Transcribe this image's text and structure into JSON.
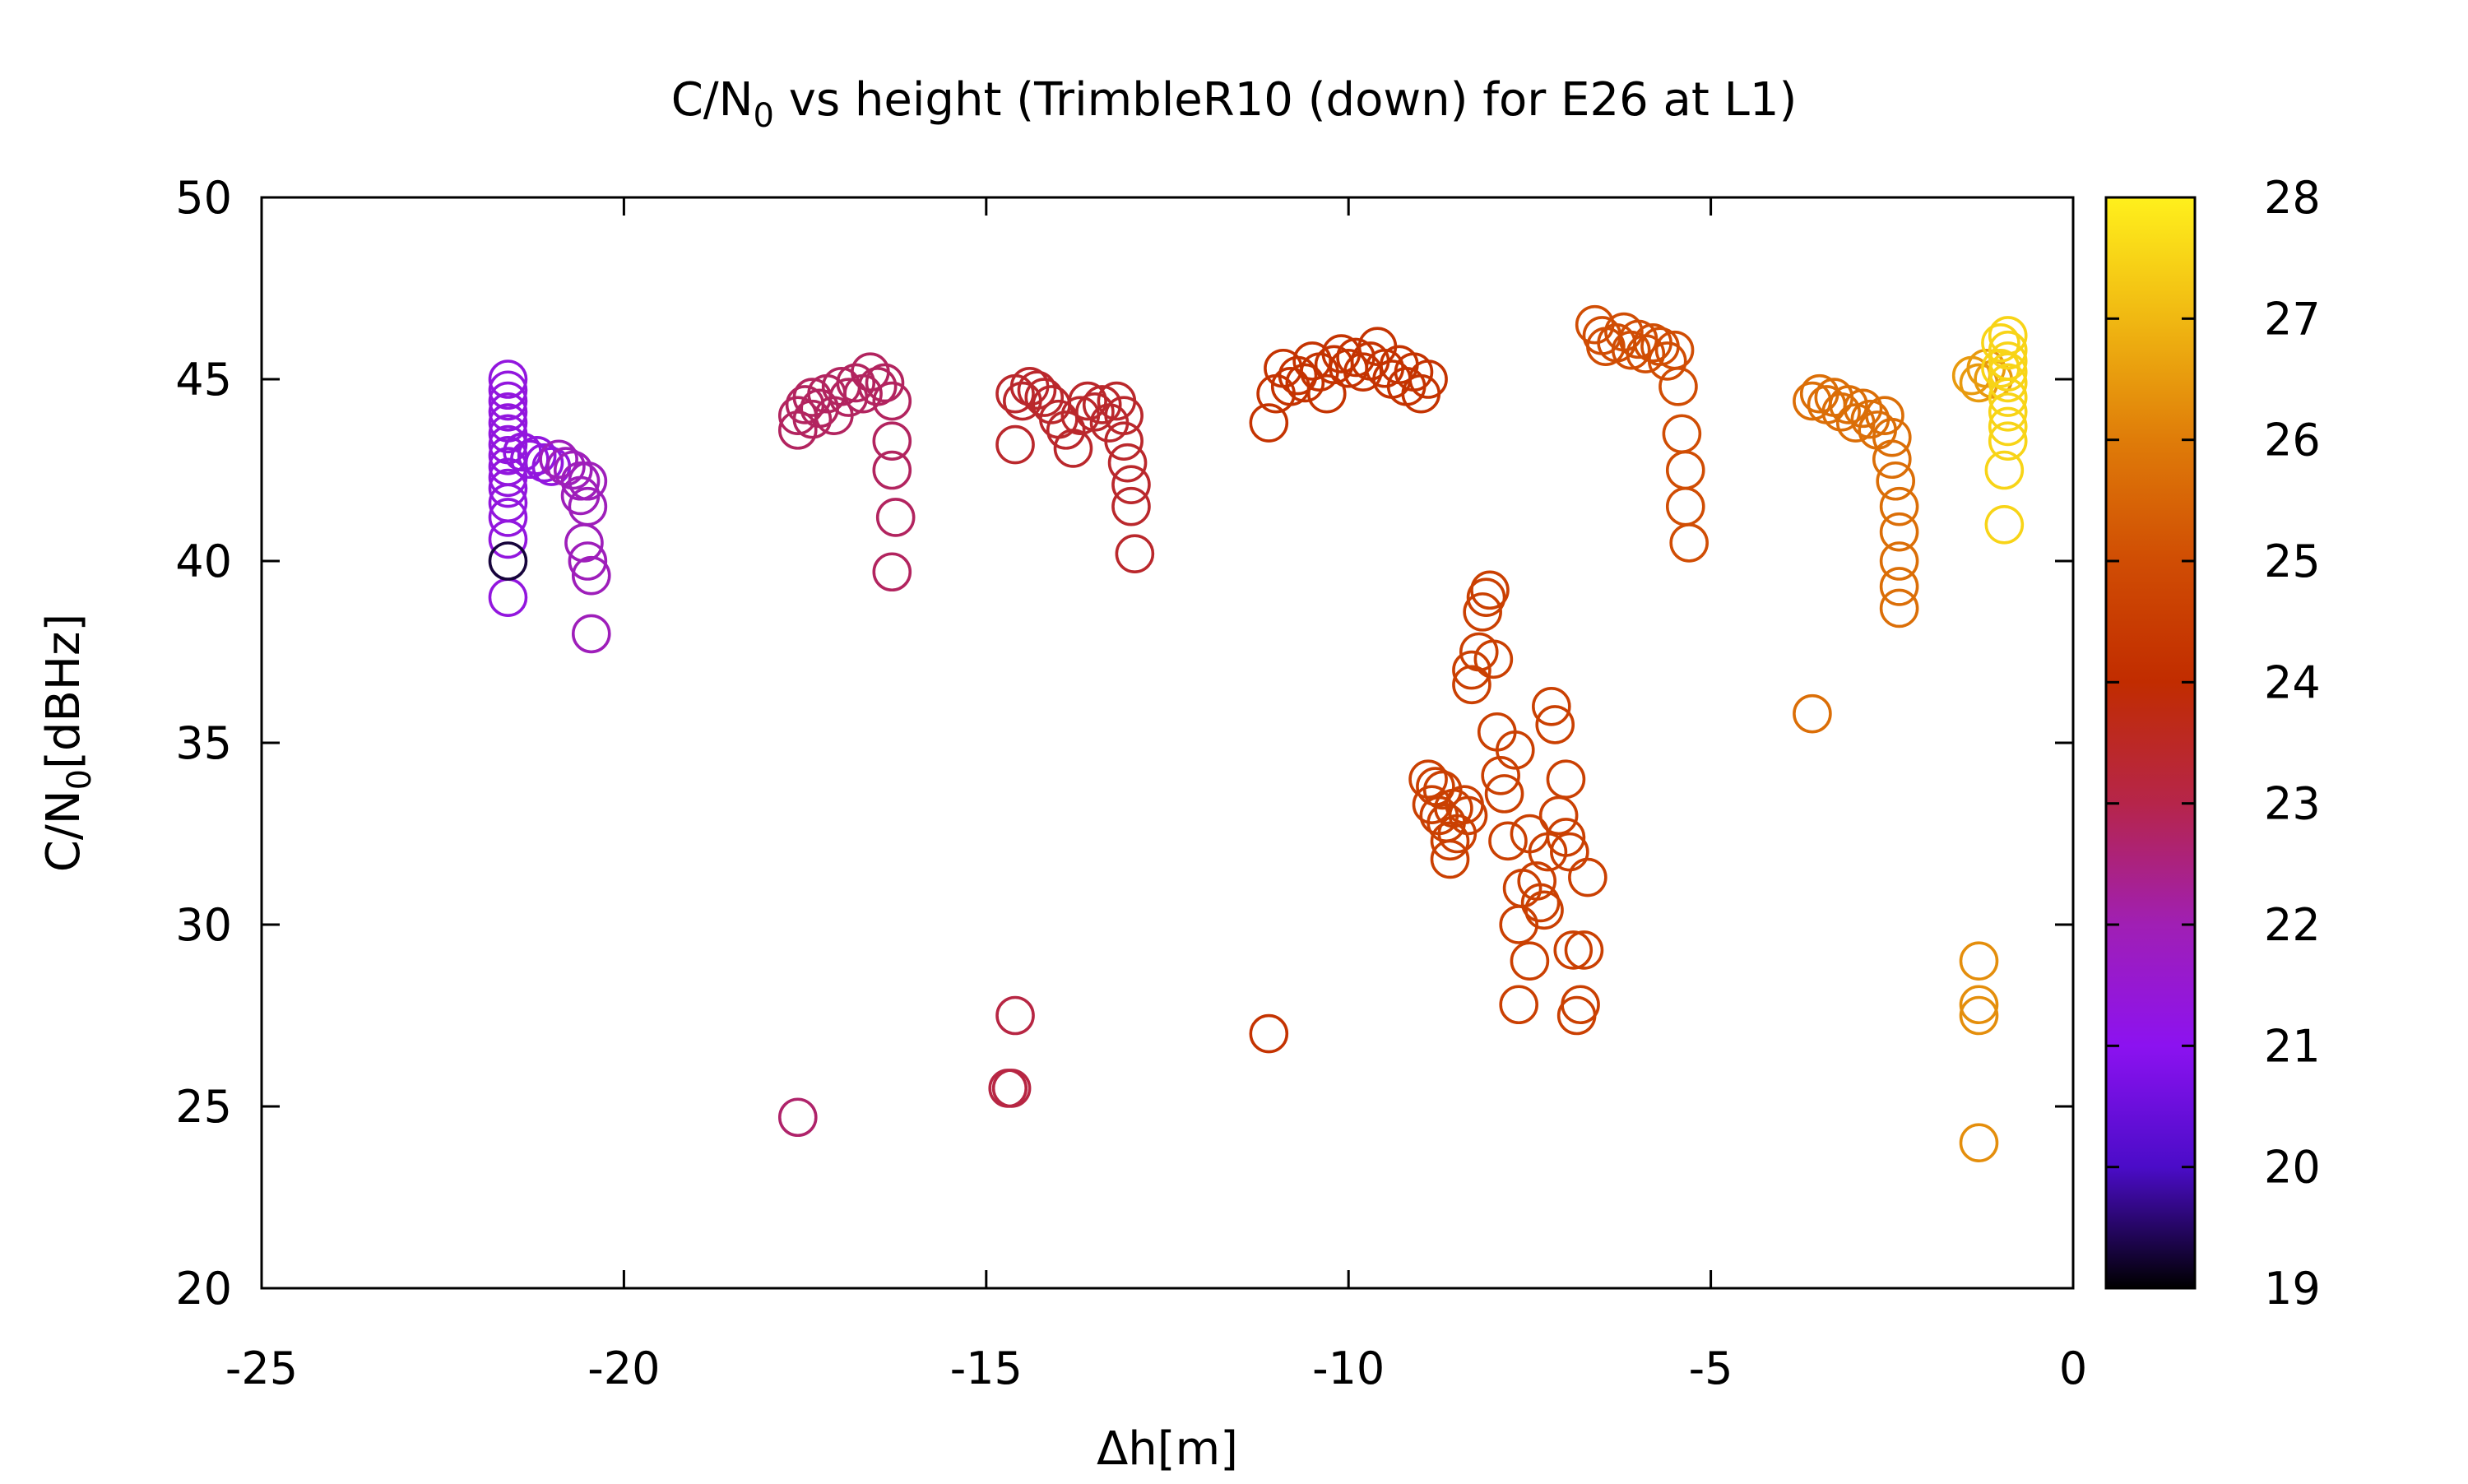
{
  "chart_data": {
    "type": "scatter",
    "title_main": "C/N",
    "title_sub": "0",
    "title_rest": " vs height (TrimbleR10 (down) for E26 at L1)",
    "xlabel": "Δh[m]",
    "ylabel_main": "C/N",
    "ylabel_sub": "0",
    "ylabel_rest": "[dBHz]",
    "xlim": [
      -25,
      0
    ],
    "ylim": [
      20,
      50
    ],
    "xticks": [
      -25,
      -20,
      -15,
      -10,
      -5,
      0
    ],
    "yticks": [
      20,
      25,
      30,
      35,
      40,
      45,
      50
    ],
    "colorbar": {
      "range": [
        19,
        28
      ],
      "ticks": [
        19,
        20,
        21,
        22,
        23,
        24,
        25,
        26,
        27,
        28
      ],
      "palette": [
        "#000000",
        "#4b0cc8",
        "#8c12f0",
        "#a01fb4",
        "#b6254a",
        "#c12c00",
        "#d04d04",
        "#df7c09",
        "#f0b812",
        "#fff01c"
      ]
    },
    "grid": false,
    "marker": "open-circle",
    "clusters": [
      {
        "c": 21.3,
        "points": [
          [
            -21.6,
            45.0
          ],
          [
            -21.6,
            44.7
          ],
          [
            -21.6,
            44.4
          ],
          [
            -21.6,
            44.1
          ],
          [
            -21.6,
            43.8
          ],
          [
            -21.6,
            43.5
          ],
          [
            -21.6,
            43.2
          ],
          [
            -21.6,
            42.9
          ],
          [
            -21.6,
            42.6
          ],
          [
            -21.6,
            42.3
          ],
          [
            -21.6,
            42.0
          ],
          [
            -21.6,
            41.6
          ],
          [
            -21.6,
            41.2
          ],
          [
            -21.6,
            40.6
          ],
          [
            -21.6,
            39.0
          ],
          [
            -21.4,
            43.0
          ],
          [
            -21.3,
            42.8
          ],
          [
            -21.2,
            42.9
          ],
          [
            -21.1,
            42.7
          ],
          [
            -21.0,
            42.6
          ]
        ]
      },
      {
        "c": 19.3,
        "points": [
          [
            -21.6,
            40.0
          ]
        ]
      },
      {
        "c": 21.9,
        "points": [
          [
            -20.9,
            42.8
          ],
          [
            -20.8,
            42.6
          ],
          [
            -20.7,
            42.5
          ],
          [
            -20.6,
            42.2
          ],
          [
            -20.6,
            41.8
          ],
          [
            -20.5,
            42.2
          ],
          [
            -20.5,
            41.5
          ],
          [
            -20.55,
            40.5
          ],
          [
            -20.5,
            40.0
          ],
          [
            -20.45,
            39.6
          ],
          [
            -20.45,
            38.0
          ]
        ]
      },
      {
        "c": 22.7,
        "points": [
          [
            -17.6,
            24.7
          ]
        ]
      },
      {
        "c": 22.8,
        "points": [
          [
            -17.6,
            44.0
          ],
          [
            -17.5,
            44.3
          ],
          [
            -17.4,
            44.5
          ],
          [
            -17.3,
            44.2
          ],
          [
            -17.2,
            44.6
          ],
          [
            -17.1,
            44.0
          ],
          [
            -17.0,
            44.8
          ],
          [
            -16.9,
            44.5
          ],
          [
            -16.8,
            44.9
          ],
          [
            -16.7,
            44.6
          ],
          [
            -16.6,
            45.2
          ],
          [
            -16.5,
            44.8
          ],
          [
            -16.4,
            44.9
          ],
          [
            -16.3,
            44.4
          ],
          [
            -16.3,
            43.3
          ],
          [
            -16.3,
            42.5
          ],
          [
            -16.25,
            41.2
          ],
          [
            -16.3,
            39.7
          ],
          [
            -17.6,
            43.6
          ],
          [
            -17.4,
            43.9
          ]
        ]
      },
      {
        "c": 23.1,
        "points": [
          [
            -14.6,
            27.5
          ],
          [
            -14.65,
            25.5
          ],
          [
            -14.7,
            25.5
          ]
        ]
      },
      {
        "c": 23.4,
        "points": [
          [
            -14.6,
            43.2
          ],
          [
            -14.6,
            44.6
          ],
          [
            -14.5,
            44.4
          ],
          [
            -14.4,
            44.8
          ],
          [
            -14.3,
            44.7
          ],
          [
            -14.2,
            44.5
          ],
          [
            -14.1,
            44.3
          ],
          [
            -14.0,
            43.9
          ],
          [
            -13.9,
            43.6
          ],
          [
            -13.8,
            43.1
          ],
          [
            -13.7,
            44.0
          ],
          [
            -13.6,
            44.4
          ],
          [
            -13.5,
            44.1
          ],
          [
            -13.4,
            44.3
          ],
          [
            -13.3,
            43.8
          ],
          [
            -13.2,
            44.4
          ],
          [
            -13.1,
            44.0
          ],
          [
            -13.1,
            43.3
          ],
          [
            -13.05,
            42.7
          ],
          [
            -13.0,
            42.1
          ],
          [
            -13.0,
            41.5
          ],
          [
            -12.95,
            40.2
          ]
        ]
      },
      {
        "c": 24.2,
        "points": [
          [
            -11.1,
            27.0
          ],
          [
            -11.1,
            43.8
          ],
          [
            -11.0,
            44.6
          ],
          [
            -10.9,
            45.3
          ],
          [
            -10.8,
            44.8
          ],
          [
            -10.7,
            45.1
          ],
          [
            -10.6,
            44.9
          ],
          [
            -10.5,
            45.5
          ],
          [
            -10.4,
            45.2
          ],
          [
            -10.3,
            44.6
          ],
          [
            -10.2,
            45.4
          ],
          [
            -10.1,
            45.7
          ],
          [
            -10.0,
            45.3
          ],
          [
            -9.9,
            45.6
          ],
          [
            -9.8,
            45.2
          ],
          [
            -9.7,
            45.5
          ],
          [
            -9.6,
            45.9
          ],
          [
            -9.5,
            45.3
          ],
          [
            -9.4,
            45.0
          ],
          [
            -9.3,
            45.4
          ],
          [
            -9.2,
            44.8
          ],
          [
            -9.1,
            45.2
          ],
          [
            -9.0,
            44.6
          ],
          [
            -8.9,
            45.0
          ]
        ]
      },
      {
        "c": 24.6,
        "points": [
          [
            -8.9,
            34.0
          ],
          [
            -8.85,
            33.3
          ],
          [
            -8.8,
            33.8
          ],
          [
            -8.75,
            33.0
          ],
          [
            -8.7,
            33.7
          ],
          [
            -8.65,
            32.8
          ],
          [
            -8.6,
            32.3
          ],
          [
            -8.6,
            31.8
          ],
          [
            -8.55,
            33.2
          ],
          [
            -8.5,
            32.5
          ],
          [
            -8.4,
            33.3
          ],
          [
            -8.35,
            33.0
          ],
          [
            -8.3,
            36.6
          ],
          [
            -8.3,
            37.0
          ],
          [
            -8.2,
            37.5
          ],
          [
            -8.15,
            38.6
          ],
          [
            -8.1,
            39.0
          ],
          [
            -8.05,
            39.2
          ],
          [
            -8.0,
            37.3
          ],
          [
            -7.95,
            35.3
          ],
          [
            -7.9,
            34.1
          ],
          [
            -7.85,
            33.6
          ],
          [
            -7.8,
            32.3
          ],
          [
            -7.7,
            34.8
          ],
          [
            -7.65,
            27.8
          ],
          [
            -7.65,
            30.0
          ],
          [
            -7.6,
            31.0
          ],
          [
            -7.5,
            32.5
          ],
          [
            -7.5,
            29.0
          ],
          [
            -7.4,
            31.2
          ],
          [
            -7.35,
            30.6
          ],
          [
            -7.3,
            30.4
          ],
          [
            -7.25,
            32.0
          ],
          [
            -7.2,
            36.0
          ],
          [
            -7.15,
            35.5
          ],
          [
            -7.1,
            33.0
          ],
          [
            -7.0,
            32.4
          ],
          [
            -7.0,
            34.0
          ],
          [
            -6.95,
            32.0
          ],
          [
            -6.9,
            29.3
          ],
          [
            -6.85,
            27.5
          ],
          [
            -6.8,
            27.8
          ],
          [
            -6.75,
            29.3
          ],
          [
            -6.7,
            31.3
          ]
        ]
      },
      {
        "c": 25.0,
        "points": [
          [
            -6.6,
            46.5
          ],
          [
            -6.5,
            46.2
          ],
          [
            -6.45,
            45.9
          ],
          [
            -6.3,
            46.0
          ],
          [
            -6.2,
            46.3
          ],
          [
            -6.1,
            45.8
          ],
          [
            -6.0,
            46.1
          ],
          [
            -5.9,
            45.7
          ],
          [
            -5.8,
            46.0
          ],
          [
            -5.7,
            45.9
          ],
          [
            -5.6,
            45.5
          ],
          [
            -5.5,
            45.8
          ],
          [
            -5.45,
            44.8
          ],
          [
            -5.4,
            43.5
          ],
          [
            -5.35,
            42.5
          ],
          [
            -5.35,
            41.5
          ],
          [
            -5.3,
            40.5
          ]
        ]
      },
      {
        "c": 25.7,
        "points": [
          [
            -3.6,
            35.8
          ],
          [
            -3.6,
            44.4
          ],
          [
            -3.5,
            44.6
          ],
          [
            -3.4,
            44.3
          ],
          [
            -3.3,
            44.5
          ],
          [
            -3.2,
            44.1
          ],
          [
            -3.1,
            44.3
          ],
          [
            -3.0,
            43.8
          ],
          [
            -2.9,
            44.2
          ],
          [
            -2.8,
            43.9
          ],
          [
            -2.7,
            43.6
          ],
          [
            -2.6,
            44.0
          ],
          [
            -2.5,
            43.4
          ],
          [
            -2.5,
            42.8
          ],
          [
            -2.45,
            42.2
          ],
          [
            -2.4,
            41.5
          ],
          [
            -2.4,
            40.8
          ],
          [
            -2.4,
            40.0
          ],
          [
            -2.4,
            39.3
          ],
          [
            -2.4,
            38.7
          ]
        ]
      },
      {
        "c": 26.3,
        "points": [
          [
            -1.3,
            29.0
          ],
          [
            -1.3,
            27.8
          ],
          [
            -1.3,
            27.5
          ],
          [
            -1.3,
            24.0
          ]
        ]
      },
      {
        "c": 26.5,
        "points": [
          [
            -1.4,
            45.1
          ],
          [
            -1.3,
            44.9
          ],
          [
            -1.2,
            45.3
          ],
          [
            -1.1,
            45.0
          ]
        ]
      },
      {
        "c": 27.5,
        "points": [
          [
            -0.9,
            46.2
          ],
          [
            -0.9,
            45.8
          ],
          [
            -0.9,
            45.5
          ],
          [
            -0.9,
            45.2
          ],
          [
            -0.9,
            44.9
          ],
          [
            -0.9,
            44.5
          ],
          [
            -0.9,
            44.1
          ],
          [
            -0.9,
            43.7
          ],
          [
            -0.9,
            43.3
          ],
          [
            -0.95,
            42.5
          ],
          [
            -0.95,
            41.0
          ],
          [
            -1.0,
            46.0
          ],
          [
            -1.0,
            45.3
          ]
        ]
      }
    ]
  }
}
